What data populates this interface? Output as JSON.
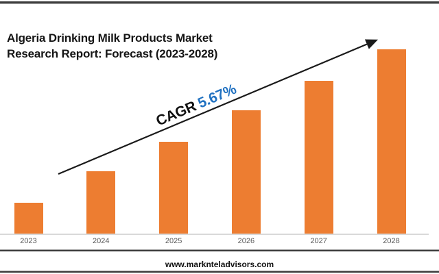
{
  "title": {
    "line1": "Algeria Drinking Milk Products Market",
    "line2": "Research Report: Forecast (2023-2028)"
  },
  "annotation": {
    "cagr_label": "CAGR",
    "cagr_value": "5.67%",
    "cagr_value_color": "#2071C1",
    "cagr_label_color": "#111111",
    "arrow_color": "#1a1a1a"
  },
  "footer": {
    "website": "www.marknteladvisors.com"
  },
  "chart_data": {
    "type": "bar",
    "title": "Algeria Drinking Milk Products Market Research Report: Forecast (2023-2028)",
    "categories": [
      "2023",
      "2024",
      "2025",
      "2026",
      "2027",
      "2028"
    ],
    "values": [
      17,
      34,
      50,
      67,
      83,
      100
    ],
    "values_note": "No y-axis shown; values are relative bar heights as percent of tallest (2028) bar",
    "xlabel": "",
    "ylabel": "",
    "legend": "none",
    "gridlines": "off",
    "bar_color": "#ED7D31",
    "axis_line_color": "#D9D9D9",
    "tick_label_color": "#595959",
    "annotation": "CAGR 5.67% with rising trend arrow from 2023 to 2028"
  }
}
